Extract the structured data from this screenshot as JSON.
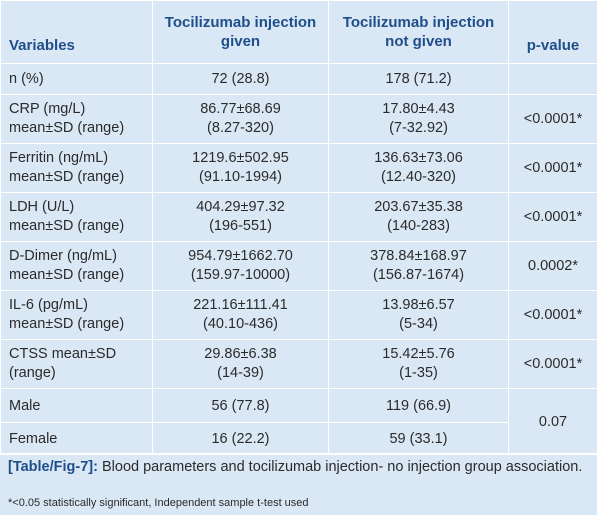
{
  "headers": {
    "variables": "Variables",
    "given_line1": "Tocilizumab injection",
    "given_line2": "given",
    "notgiven_line1": "Tocilizumab injection",
    "notgiven_line2": "not given",
    "pvalue": "p-value"
  },
  "rows": [
    {
      "label1": "n (%)",
      "label2": "",
      "given1": "72 (28.8)",
      "given2": "",
      "not1": "178 (71.2)",
      "not2": "",
      "p": ""
    },
    {
      "label1": "CRP (mg/L)",
      "label2": "mean±SD (range)",
      "given1": "86.77±68.69",
      "given2": "(8.27-320)",
      "not1": "17.80±4.43",
      "not2": "(7-32.92)",
      "p": "<0.0001*"
    },
    {
      "label1": "Ferritin (ng/mL)",
      "label2": "mean±SD (range)",
      "given1": "1219.6±502.95",
      "given2": "(91.10-1994)",
      "not1": "136.63±73.06",
      "not2": "(12.40-320)",
      "p": "<0.0001*"
    },
    {
      "label1": "LDH (U/L)",
      "label2": "mean±SD (range)",
      "given1": "404.29±97.32",
      "given2": "(196-551)",
      "not1": "203.67±35.38",
      "not2": "(140-283)",
      "p": "<0.0001*"
    },
    {
      "label1": "D-Dimer (ng/mL)",
      "label2": "mean±SD (range)",
      "given1": "954.79±1662.70",
      "given2": "(159.97-10000)",
      "not1": "378.84±168.97",
      "not2": "(156.87-1674)",
      "p": "0.0002*"
    },
    {
      "label1": "IL-6 (pg/mL)",
      "label2": "mean±SD (range)",
      "given1": "221.16±111.41",
      "given2": "(40.10-436)",
      "not1": "13.98±6.57",
      "not2": "(5-34)",
      "p": "<0.0001*"
    },
    {
      "label1": "CTSS mean±SD",
      "label2": "(range)",
      "given1": "29.86±6.38",
      "given2": "(14-39)",
      "not1": "15.42±5.76",
      "not2": "(1-35)",
      "p": "<0.0001*"
    },
    {
      "label1": "Male",
      "label2": "",
      "given1": "56 (77.8)",
      "given2": "",
      "not1": "119 (66.9)",
      "not2": "",
      "p": "0.07"
    },
    {
      "label1": "Female",
      "label2": "",
      "given1": "16 (22.2)",
      "given2": "",
      "not1": "59 (33.1)",
      "not2": "",
      "p": ""
    }
  ],
  "caption": {
    "tag": "[Table/Fig-7]:",
    "text": " Blood parameters and tocilizumab injection- no injection group association.",
    "footnote": "*<0.05 statistically significant, Independent sample t-test used"
  }
}
